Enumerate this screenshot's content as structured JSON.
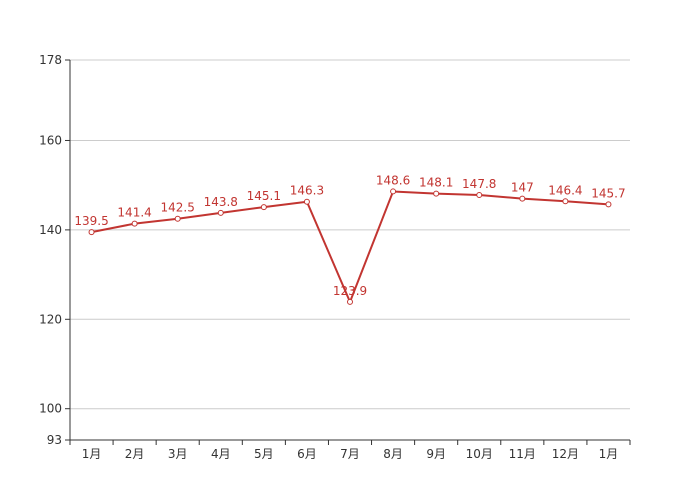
{
  "chart_data": {
    "type": "line",
    "title": "",
    "xlabel": "",
    "ylabel": "",
    "categories": [
      "1月",
      "2月",
      "3月",
      "4月",
      "5月",
      "6月",
      "7月",
      "8月",
      "9月",
      "10月",
      "11月",
      "12月",
      "1月"
    ],
    "series": [
      {
        "values": [
          139.5,
          141.4,
          142.5,
          143.8,
          145.1,
          146.3,
          123.9,
          148.6,
          148.1,
          147.8,
          147,
          146.4,
          145.7
        ]
      }
    ],
    "data_labels": [
      "139.5",
      "141.4",
      "142.5",
      "143.8",
      "145.1",
      "146.3",
      "123.9",
      "148.6",
      "148.1",
      "147.8",
      "147",
      "146.4",
      "145.7"
    ],
    "ylim": [
      93,
      178
    ],
    "y_ticks": [
      93,
      100,
      120,
      140,
      160,
      178
    ],
    "y_tick_labels": [
      "93",
      "100",
      "120",
      "140",
      "160",
      "178"
    ],
    "grid": true,
    "legend": "none",
    "colors": {
      "line": "#c23531",
      "grid": "#cccccc",
      "axis": "#333333",
      "text": "#333333"
    }
  }
}
